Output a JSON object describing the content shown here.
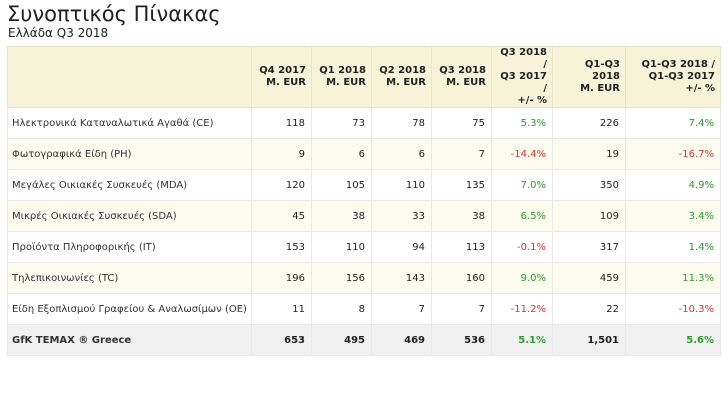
{
  "title": "Συνοπτικός Πίνακας",
  "subtitle": "Ελλάδα Q3 2018",
  "colors": {
    "positive": "#2a9d2a",
    "negative": "#d93636",
    "header_bg": "#f6f3d9",
    "alt_row_bg": "#fbfbee",
    "total_bg": "#f0f0f0"
  },
  "table": {
    "headers": [
      {
        "line1": "",
        "line2": ""
      },
      {
        "line1": "Q4 2017",
        "line2": "M. EUR"
      },
      {
        "line1": "Q1 2018",
        "line2": "M. EUR"
      },
      {
        "line1": "Q2 2018",
        "line2": "M. EUR"
      },
      {
        "line1": "Q3 2018",
        "line2": "M. EUR"
      },
      {
        "line1": "Q3 2018 /",
        "line2": "Q3 2017 /",
        "line3": "+/- %"
      },
      {
        "line1": "Q1-Q3 2018",
        "line2": "M. EUR"
      },
      {
        "line1": "Q1-Q3 2018 /",
        "line2": "Q1-Q3 2017",
        "line3": "+/- %"
      }
    ],
    "rows": [
      {
        "name": "Ηλεκτρονικά Καταναλωτικά Αγαθά (CE)",
        "q4_2017": "118",
        "q1_2018": "73",
        "q2_2018": "78",
        "q3_2018": "75",
        "q3_change": "5.3%",
        "q1q3_2018": "226",
        "q1q3_change": "7.4%"
      },
      {
        "name": "Φωτογραφικά Είδη (PH)",
        "q4_2017": "9",
        "q1_2018": "6",
        "q2_2018": "6",
        "q3_2018": "7",
        "q3_change": "-14.4%",
        "q1q3_2018": "19",
        "q1q3_change": "-16.7%"
      },
      {
        "name": "Μεγάλες Οικιακές Συσκευές (MDA)",
        "q4_2017": "120",
        "q1_2018": "105",
        "q2_2018": "110",
        "q3_2018": "135",
        "q3_change": "7.0%",
        "q1q3_2018": "350",
        "q1q3_change": "4.9%"
      },
      {
        "name": "Μικρές Οικιακές Συσκευές (SDA)",
        "q4_2017": "45",
        "q1_2018": "38",
        "q2_2018": "33",
        "q3_2018": "38",
        "q3_change": "6.5%",
        "q1q3_2018": "109",
        "q1q3_change": "3.4%"
      },
      {
        "name": "Προϊόντα Πληροφορικής (IT)",
        "q4_2017": "153",
        "q1_2018": "110",
        "q2_2018": "94",
        "q3_2018": "113",
        "q3_change": "-0.1%",
        "q1q3_2018": "317",
        "q1q3_change": "1.4%"
      },
      {
        "name": "Τηλεπικοινωνίες (TC)",
        "q4_2017": "196",
        "q1_2018": "156",
        "q2_2018": "143",
        "q3_2018": "160",
        "q3_change": "9.0%",
        "q1q3_2018": "459",
        "q1q3_change": "11.3%"
      },
      {
        "name": "Είδη Εξοπλισμού Γραφείου & Αναλωσίμων (OE)",
        "q4_2017": "11",
        "q1_2018": "8",
        "q2_2018": "7",
        "q3_2018": "7",
        "q3_change": "-11.2%",
        "q1q3_2018": "22",
        "q1q3_change": "-10.3%"
      }
    ],
    "total": {
      "name": "GfK TEMAX ® Greece",
      "q4_2017": "653",
      "q1_2018": "495",
      "q2_2018": "469",
      "q3_2018": "536",
      "q3_change": "5.1%",
      "q1q3_2018": "1,501",
      "q1q3_change": "5.6%"
    }
  }
}
